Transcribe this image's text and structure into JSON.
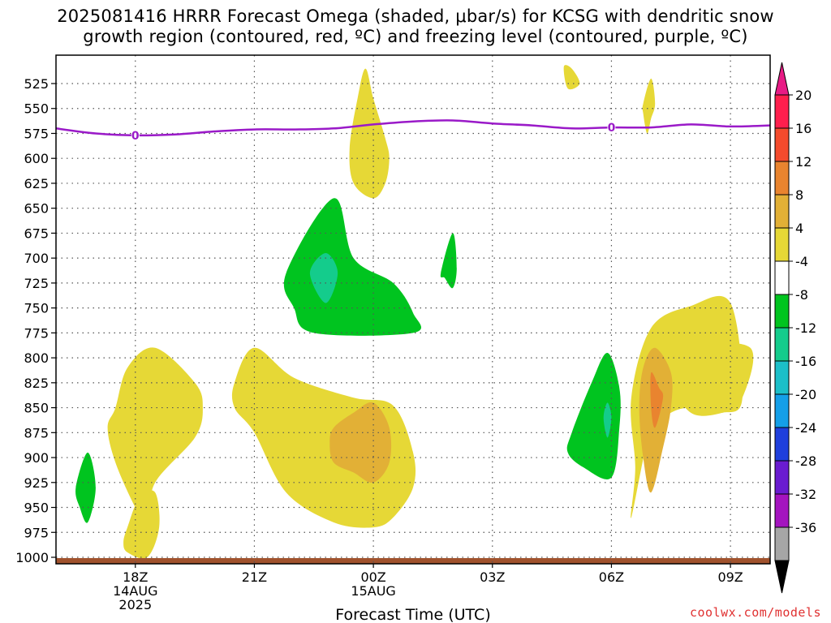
{
  "title_line1": "2025081416 HRRR Forecast Omega (shaded, μbar/s) for KCSG with dendritic snow",
  "title_line2": "growth region (contoured, red, ºC) and freezing level (contoured, purple, ºC)",
  "credit": "coolwx.com/models",
  "chart_data": {
    "type": "contour",
    "xlabel": "Forecast Time (UTC)",
    "x_range_hours": [
      -2.0,
      16.0
    ],
    "x_ticks": [
      {
        "hour": 0,
        "labels": [
          "18Z",
          "14AUG",
          "2025"
        ]
      },
      {
        "hour": 3,
        "labels": [
          "21Z"
        ]
      },
      {
        "hour": 6,
        "labels": [
          "00Z",
          "15AUG"
        ]
      },
      {
        "hour": 9,
        "labels": [
          "03Z"
        ]
      },
      {
        "hour": 12,
        "labels": [
          "06Z"
        ]
      },
      {
        "hour": 15,
        "labels": [
          "09Z"
        ]
      }
    ],
    "y_ticks_mb": [
      525,
      550,
      575,
      600,
      625,
      650,
      675,
      700,
      725,
      750,
      775,
      800,
      825,
      850,
      875,
      900,
      925,
      950,
      975,
      1000
    ],
    "grid": true,
    "colorbar": {
      "labels": [
        "20",
        "16",
        "12",
        "8",
        "4",
        "-4",
        "-8",
        "-12",
        "-16",
        "-20",
        "-24",
        "-28",
        "-32",
        "-36"
      ],
      "colors": [
        "#ff1f4d",
        "#f44b2d",
        "#e9842f",
        "#e2b036",
        "#e6d836",
        "#ffffff",
        "#00c41f",
        "#14cc8c",
        "#1cbfc9",
        "#149fe8",
        "#1f3fdc",
        "#6a1cd0",
        "#a414bf",
        "#a6a6a6"
      ],
      "top_arrow_color": "#e81b85",
      "bottom_arrow_color": "#000000"
    },
    "freezing_level": {
      "label": "0",
      "color": "#9a1ac8",
      "hours": [
        -2,
        -1,
        0,
        1,
        2,
        3,
        4,
        5,
        6,
        7,
        8,
        9,
        10,
        11,
        12,
        13,
        14,
        15,
        16
      ],
      "pressure_mb": [
        570,
        575,
        577,
        576,
        573,
        571,
        571,
        570,
        566,
        563,
        562,
        565,
        567,
        570,
        569,
        569,
        566,
        568,
        567
      ]
    },
    "omega_regions": [
      {
        "level": "4 to 8",
        "color": "#e6d836",
        "hours": [
          -0.5,
          -0.2,
          0.5,
          1.5,
          1.7,
          1.5,
          0.5,
          0.3,
          0.0,
          -0.5,
          -0.7
        ],
        "pressure_mb": [
          850,
          810,
          790,
          825,
          850,
          880,
          925,
          965,
          950,
          905,
          870
        ]
      },
      {
        "level": "4 to 8",
        "color": "#e6d836",
        "hours": [
          -0.2,
          0.1,
          0.5,
          0.6,
          0.3,
          -0.2,
          -0.3
        ],
        "pressure_mb": [
          970,
          940,
          935,
          970,
          1000,
          995,
          985
        ]
      },
      {
        "level": "4 to 8",
        "color": "#e6d836",
        "hours": [
          3.0,
          4.0,
          5.5,
          6.5,
          7.0,
          7.0,
          6.5,
          6.0,
          5.0,
          3.8,
          3.0,
          2.5,
          2.5
        ],
        "pressure_mb": [
          790,
          820,
          840,
          848,
          895,
          930,
          960,
          970,
          965,
          935,
          875,
          850,
          825
        ]
      },
      {
        "level": "8 to 12",
        "color": "#e2b036",
        "hours": [
          5.0,
          5.5,
          6.0,
          6.4,
          6.4,
          6.0,
          5.5,
          5.0,
          4.9
        ],
        "pressure_mb": [
          870,
          855,
          845,
          870,
          905,
          925,
          915,
          905,
          885
        ]
      },
      {
        "level": "4 to 8",
        "color": "#e6d836",
        "hours": [
          5.8,
          6.0,
          6.3,
          6.4,
          6.3,
          6.0,
          5.5,
          5.4,
          5.6
        ],
        "pressure_mb": [
          510,
          540,
          580,
          600,
          625,
          640,
          625,
          590,
          540
        ]
      },
      {
        "level": "4 to 8",
        "color": "#e6d836",
        "hours": [
          10.8,
          11.0,
          11.2,
          10.9
        ],
        "pressure_mb": [
          508,
          510,
          525,
          530
        ]
      },
      {
        "level": "4 to 8",
        "color": "#e6d836",
        "hours": [
          12.8,
          13.0,
          13.1,
          13.0,
          12.9,
          12.8
        ],
        "pressure_mb": [
          545,
          520,
          545,
          560,
          575,
          555
        ]
      },
      {
        "level": "4 to 8",
        "color": "#e6d836",
        "hours": [
          12.5,
          13.0,
          14.0,
          15.0,
          15.3,
          14.8,
          14.0,
          13.5,
          13.0,
          12.5,
          12.6
        ],
        "pressure_mb": [
          840,
          770,
          748,
          745,
          840,
          855,
          850,
          855,
          870,
          960,
          910
        ]
      },
      {
        "level": "4 to 8",
        "color": "#e6d836",
        "hours": [
          13.5,
          14.0,
          15.5,
          15.3,
          14.8,
          14.0
        ],
        "pressure_mb": [
          820,
          790,
          790,
          840,
          855,
          855
        ]
      },
      {
        "level": "8 to 12",
        "color": "#e2b036",
        "hours": [
          12.8,
          13.1,
          13.5,
          13.5,
          13.3,
          13.0,
          12.8,
          12.7
        ],
        "pressure_mb": [
          810,
          790,
          815,
          850,
          890,
          935,
          900,
          850
        ]
      },
      {
        "level": "12 to 16",
        "color": "#e9842f",
        "hours": [
          13.0,
          13.2,
          13.3,
          13.1,
          13.0
        ],
        "pressure_mb": [
          815,
          830,
          840,
          870,
          850
        ]
      },
      {
        "level": "-8 to -4",
        "color": "#00c41f",
        "hours": [
          3.8,
          5.0,
          5.5,
          6.5,
          7.0,
          7.0,
          4.5,
          4.0
        ],
        "pressure_mb": [
          715,
          640,
          700,
          725,
          755,
          775,
          775,
          750
        ]
      },
      {
        "level": "-12 to -8",
        "color": "#14cc8c",
        "hours": [
          4.4,
          4.8,
          5.1,
          4.8
        ],
        "pressure_mb": [
          715,
          695,
          715,
          745
        ]
      },
      {
        "level": "-8 to -4",
        "color": "#00c41f",
        "hours": [
          7.7,
          8.0,
          8.1,
          8.0,
          7.8
        ],
        "pressure_mb": [
          715,
          675,
          710,
          730,
          720
        ]
      },
      {
        "level": "-8 to -4",
        "color": "#00c41f",
        "hours": [
          11.0,
          11.5,
          11.9,
          12.2,
          12.2,
          12.0,
          11.3,
          10.9
        ],
        "pressure_mb": [
          875,
          825,
          795,
          830,
          870,
          920,
          910,
          895
        ]
      },
      {
        "level": "-12 to -8",
        "color": "#14cc8c",
        "hours": [
          11.9,
          12.0,
          11.9,
          11.8
        ],
        "pressure_mb": [
          845,
          860,
          880,
          860
        ]
      },
      {
        "level": "-8 to -4",
        "color": "#00c41f",
        "hours": [
          -1.5,
          -1.2,
          -1.0,
          -1.2,
          -1.4
        ],
        "pressure_mb": [
          930,
          895,
          930,
          965,
          950
        ]
      }
    ]
  }
}
